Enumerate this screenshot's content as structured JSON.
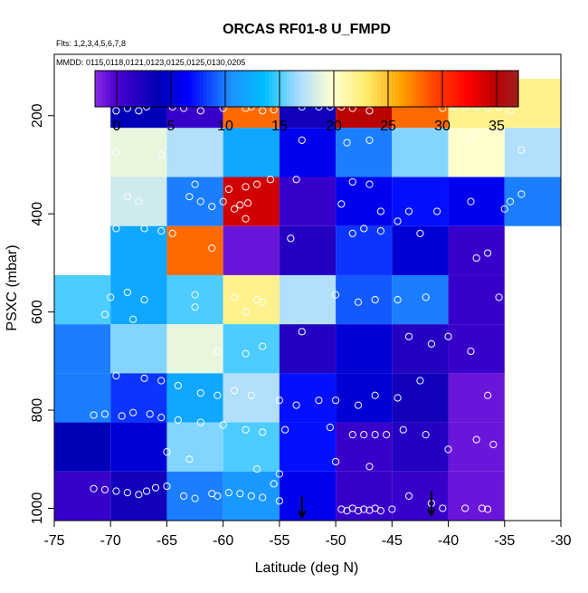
{
  "chart_data": {
    "type": "heatmap",
    "title": "ORCAS RF01-8 U_FMPD",
    "subtitle_flights": "Flts: 1,2,3,4,5,6,7,8",
    "subtitle_dates": "MMDD: 0115,0118,0121,0123,0125,0125,0130,0205",
    "xlabel": "Latitude (deg N)",
    "ylabel": "PSXC (mbar)",
    "xlim": [
      -75,
      -30
    ],
    "ylim": [
      1025,
      75
    ],
    "x_ticks": [
      -75,
      -70,
      -65,
      -60,
      -55,
      -50,
      -45,
      -40,
      -35,
      -30
    ],
    "x_tick_labels": [
      "-75",
      "-70",
      "-65",
      "-60",
      "-55",
      "-50",
      "-45",
      "-40",
      "-35",
      "-30"
    ],
    "y_ticks": [
      200,
      400,
      600,
      800,
      1000
    ],
    "y_tick_labels": [
      "200",
      "400",
      "600",
      "800",
      "1000"
    ],
    "colorbar": {
      "min": -2,
      "max": 37,
      "ticks": [
        0,
        5,
        10,
        15,
        20,
        25,
        30,
        35
      ],
      "tick_labels": [
        "0",
        "5",
        "10",
        "15",
        "20",
        "25",
        "30",
        "35"
      ]
    },
    "lat_bin_edges": [
      -75,
      -70,
      -65,
      -60,
      -55,
      -50,
      -45,
      -40,
      -35,
      -30
    ],
    "pres_bin_edges": [
      125,
      225,
      325,
      425,
      525,
      625,
      725,
      825,
      925,
      1025
    ],
    "cell_values": [
      [
        null,
        4,
        1,
        28,
        3,
        35,
        28,
        22,
        22
      ],
      [
        null,
        19,
        17,
        12,
        6,
        10,
        16,
        20,
        17
      ],
      [
        null,
        18,
        10,
        34,
        1,
        6,
        7,
        6,
        10
      ],
      [
        null,
        12,
        28,
        -1,
        2,
        8,
        5,
        1,
        null
      ],
      [
        15,
        12,
        15,
        22,
        17,
        9,
        10,
        1,
        null
      ],
      [
        10,
        16,
        19,
        15,
        2,
        5,
        2,
        1,
        null
      ],
      [
        10,
        8,
        12,
        17,
        7,
        5,
        3,
        -1,
        null
      ],
      [
        4,
        5,
        16,
        15,
        7,
        1,
        2,
        -1,
        null
      ],
      [
        1,
        3,
        10,
        11,
        6,
        1,
        1,
        -1,
        null
      ]
    ],
    "observations": [
      [
        -69.5,
        190
      ],
      [
        -68.5,
        185
      ],
      [
        -67.5,
        190
      ],
      [
        -66.8,
        182
      ],
      [
        -64.5,
        182
      ],
      [
        -63.5,
        185
      ],
      [
        -62.0,
        190
      ],
      [
        -60.0,
        185
      ],
      [
        -58.0,
        185
      ],
      [
        -57.5,
        182
      ],
      [
        -56.5,
        190
      ],
      [
        -55.5,
        188
      ],
      [
        -53.0,
        182
      ],
      [
        -51.5,
        182
      ],
      [
        -50.5,
        182
      ],
      [
        -49.5,
        182
      ],
      [
        -48.5,
        185
      ],
      [
        -47.0,
        190
      ],
      [
        -40.5,
        185
      ],
      [
        -39.5,
        182
      ],
      [
        -38.5,
        182
      ],
      [
        -37.5,
        182
      ],
      [
        -36.5,
        185
      ],
      [
        -35.5,
        182
      ],
      [
        -34.5,
        190
      ],
      [
        -53.0,
        250
      ],
      [
        -49.0,
        255
      ],
      [
        -47.0,
        250
      ],
      [
        -38.0,
        245
      ],
      [
        -33.5,
        270
      ],
      [
        -69.5,
        275
      ],
      [
        -65.5,
        280
      ],
      [
        -53.5,
        330
      ],
      [
        -48.5,
        335
      ],
      [
        -47.0,
        340
      ],
      [
        -62.5,
        340
      ],
      [
        -59.5,
        350
      ],
      [
        -58.0,
        345
      ],
      [
        -57.0,
        340
      ],
      [
        -55.8,
        330
      ],
      [
        -60.0,
        375
      ],
      [
        -61.0,
        385
      ],
      [
        -58.5,
        382
      ],
      [
        -57.8,
        378
      ],
      [
        -59.0,
        390
      ],
      [
        -68.5,
        365
      ],
      [
        -67.5,
        375
      ],
      [
        -63.0,
        365
      ],
      [
        -62.0,
        375
      ],
      [
        -49.5,
        380
      ],
      [
        -46.0,
        395
      ],
      [
        -43.5,
        395
      ],
      [
        -41.0,
        395
      ],
      [
        -38.0,
        375
      ],
      [
        -35.0,
        390
      ],
      [
        -34.5,
        375
      ],
      [
        -33.5,
        360
      ],
      [
        -69.5,
        430
      ],
      [
        -67.0,
        430
      ],
      [
        -65.5,
        435
      ],
      [
        -64.5,
        440
      ],
      [
        -61.0,
        470
      ],
      [
        -58.0,
        410
      ],
      [
        -54.0,
        450
      ],
      [
        -48.5,
        440
      ],
      [
        -47.5,
        430
      ],
      [
        -46.0,
        435
      ],
      [
        -44.5,
        415
      ],
      [
        -42.5,
        440
      ],
      [
        -37.5,
        490
      ],
      [
        -36.5,
        480
      ],
      [
        -70.0,
        570
      ],
      [
        -68.5,
        560
      ],
      [
        -67.0,
        575
      ],
      [
        -62.5,
        565
      ],
      [
        -59.0,
        570
      ],
      [
        -57.0,
        575
      ],
      [
        -56.5,
        580
      ],
      [
        -50.0,
        565
      ],
      [
        -48.0,
        580
      ],
      [
        -46.5,
        575
      ],
      [
        -44.5,
        575
      ],
      [
        -42.0,
        570
      ],
      [
        -35.5,
        570
      ],
      [
        -58.0,
        600
      ],
      [
        -62.5,
        590
      ],
      [
        -70.5,
        605
      ],
      [
        -68.0,
        615
      ],
      [
        -53.0,
        640
      ],
      [
        -56.5,
        670
      ],
      [
        -60.5,
        680
      ],
      [
        -58.0,
        685
      ],
      [
        -43.5,
        650
      ],
      [
        -40.0,
        650
      ],
      [
        -38.0,
        680
      ],
      [
        -41.5,
        665
      ],
      [
        -69.5,
        730
      ],
      [
        -67.0,
        735
      ],
      [
        -65.5,
        740
      ],
      [
        -64.0,
        750
      ],
      [
        -62.0,
        765
      ],
      [
        -60.5,
        770
      ],
      [
        -59.0,
        760
      ],
      [
        -57.5,
        770
      ],
      [
        -55.0,
        780
      ],
      [
        -53.5,
        790
      ],
      [
        -51.5,
        780
      ],
      [
        -50.0,
        780
      ],
      [
        -48.0,
        790
      ],
      [
        -46.5,
        770
      ],
      [
        -44.5,
        775
      ],
      [
        -42.5,
        740
      ],
      [
        -36.5,
        770
      ],
      [
        -71.5,
        810
      ],
      [
        -70.5,
        808
      ],
      [
        -69.0,
        812
      ],
      [
        -68.0,
        805
      ],
      [
        -66.5,
        808
      ],
      [
        -65.5,
        815
      ],
      [
        -64.0,
        820
      ],
      [
        -62.0,
        825
      ],
      [
        -60.0,
        830
      ],
      [
        -58.0,
        840
      ],
      [
        -56.5,
        845
      ],
      [
        -54.5,
        840
      ],
      [
        -50.5,
        835
      ],
      [
        -48.5,
        850
      ],
      [
        -47.5,
        850
      ],
      [
        -46.5,
        850
      ],
      [
        -45.5,
        850
      ],
      [
        -44.0,
        840
      ],
      [
        -42.0,
        850
      ],
      [
        -40.0,
        880
      ],
      [
        -37.5,
        860
      ],
      [
        -36.0,
        870
      ],
      [
        -65.0,
        885
      ],
      [
        -63.0,
        900
      ],
      [
        -57.0,
        920
      ],
      [
        -55.0,
        930
      ],
      [
        -50.0,
        905
      ],
      [
        -47.0,
        915
      ],
      [
        -71.5,
        960
      ],
      [
        -70.5,
        962
      ],
      [
        -69.5,
        965
      ],
      [
        -68.5,
        968
      ],
      [
        -67.5,
        972
      ],
      [
        -66.8,
        965
      ],
      [
        -66.0,
        958
      ],
      [
        -65.0,
        955
      ],
      [
        -63.5,
        975
      ],
      [
        -62.5,
        980
      ],
      [
        -61.0,
        970
      ],
      [
        -60.5,
        975
      ],
      [
        -59.5,
        968
      ],
      [
        -58.5,
        970
      ],
      [
        -57.5,
        975
      ],
      [
        -56.5,
        978
      ],
      [
        -55.5,
        950
      ],
      [
        -55.0,
        985
      ],
      [
        -49.5,
        1002
      ],
      [
        -49.0,
        1005
      ],
      [
        -48.5,
        1000
      ],
      [
        -48.0,
        1005
      ],
      [
        -47.5,
        1002
      ],
      [
        -47.0,
        1004
      ],
      [
        -46.5,
        1000
      ],
      [
        -46.0,
        1005
      ],
      [
        -45.0,
        1002
      ],
      [
        -43.5,
        975
      ],
      [
        -41.5,
        990
      ],
      [
        -40.5,
        1000
      ],
      [
        -38.5,
        1000
      ],
      [
        -37.0,
        1000
      ],
      [
        -36.5,
        1002
      ]
    ],
    "arrows": [
      {
        "x": -53.0,
        "y_top": 975,
        "y_bottom": 1018
      },
      {
        "x": -41.5,
        "y_top": 965,
        "y_bottom": 1014
      }
    ]
  }
}
